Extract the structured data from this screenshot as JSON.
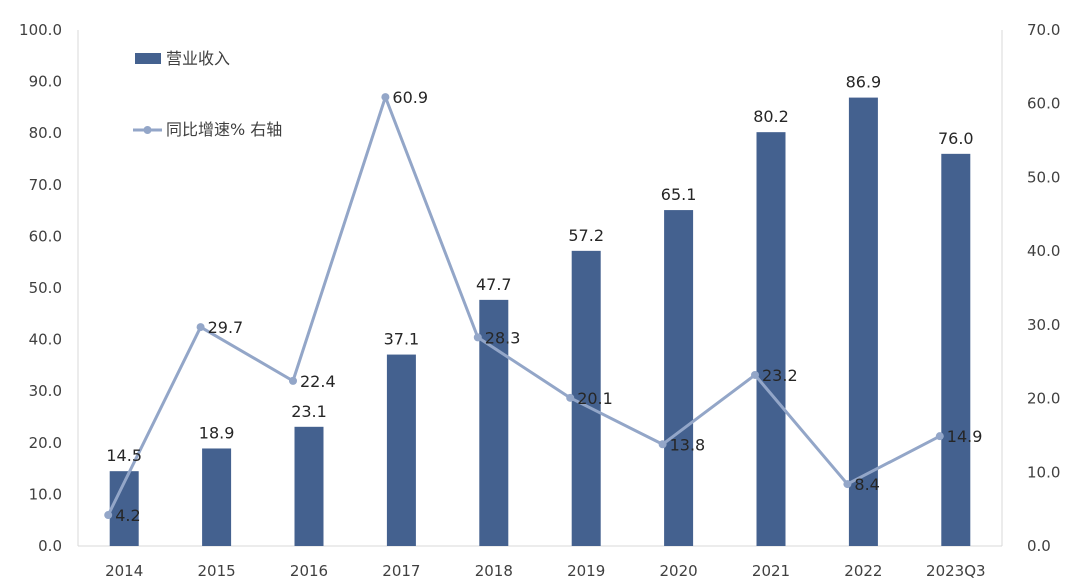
{
  "chart_data": {
    "type": "bar",
    "categories": [
      "2014",
      "2015",
      "2016",
      "2017",
      "2018",
      "2019",
      "2020",
      "2021",
      "2022",
      "2023Q3"
    ],
    "series": [
      {
        "name": "营业收入",
        "kind": "bar",
        "axis": "left",
        "values": [
          14.5,
          18.9,
          23.1,
          37.1,
          47.7,
          57.2,
          65.1,
          80.2,
          86.9,
          76.0
        ],
        "labels": [
          "14.5",
          "18.9",
          "23.1",
          "37.1",
          "47.7",
          "57.2",
          "65.1",
          "80.2",
          "86.9",
          "76.0"
        ],
        "color": "#44618f"
      },
      {
        "name": "同比增速% 右轴",
        "kind": "line",
        "axis": "right",
        "values": [
          4.2,
          29.7,
          22.4,
          60.9,
          28.3,
          20.1,
          13.8,
          23.2,
          8.4,
          14.9
        ],
        "labels": [
          "4.2",
          "29.7",
          "22.4",
          "60.9",
          "28.3",
          "20.1",
          "13.8",
          "23.2",
          "8.4",
          "14.9"
        ],
        "color": "#93a6c8"
      }
    ],
    "y_left": {
      "min": 0,
      "max": 100,
      "ticks": [
        "0.0",
        "10.0",
        "20.0",
        "30.0",
        "40.0",
        "50.0",
        "60.0",
        "70.0",
        "80.0",
        "90.0",
        "100.0"
      ]
    },
    "y_right": {
      "min": 0,
      "max": 70,
      "ticks": [
        "0.0",
        "10.0",
        "20.0",
        "30.0",
        "40.0",
        "50.0",
        "60.0",
        "70.0"
      ]
    },
    "title": "",
    "grid": false,
    "legend_position": "top-left"
  }
}
